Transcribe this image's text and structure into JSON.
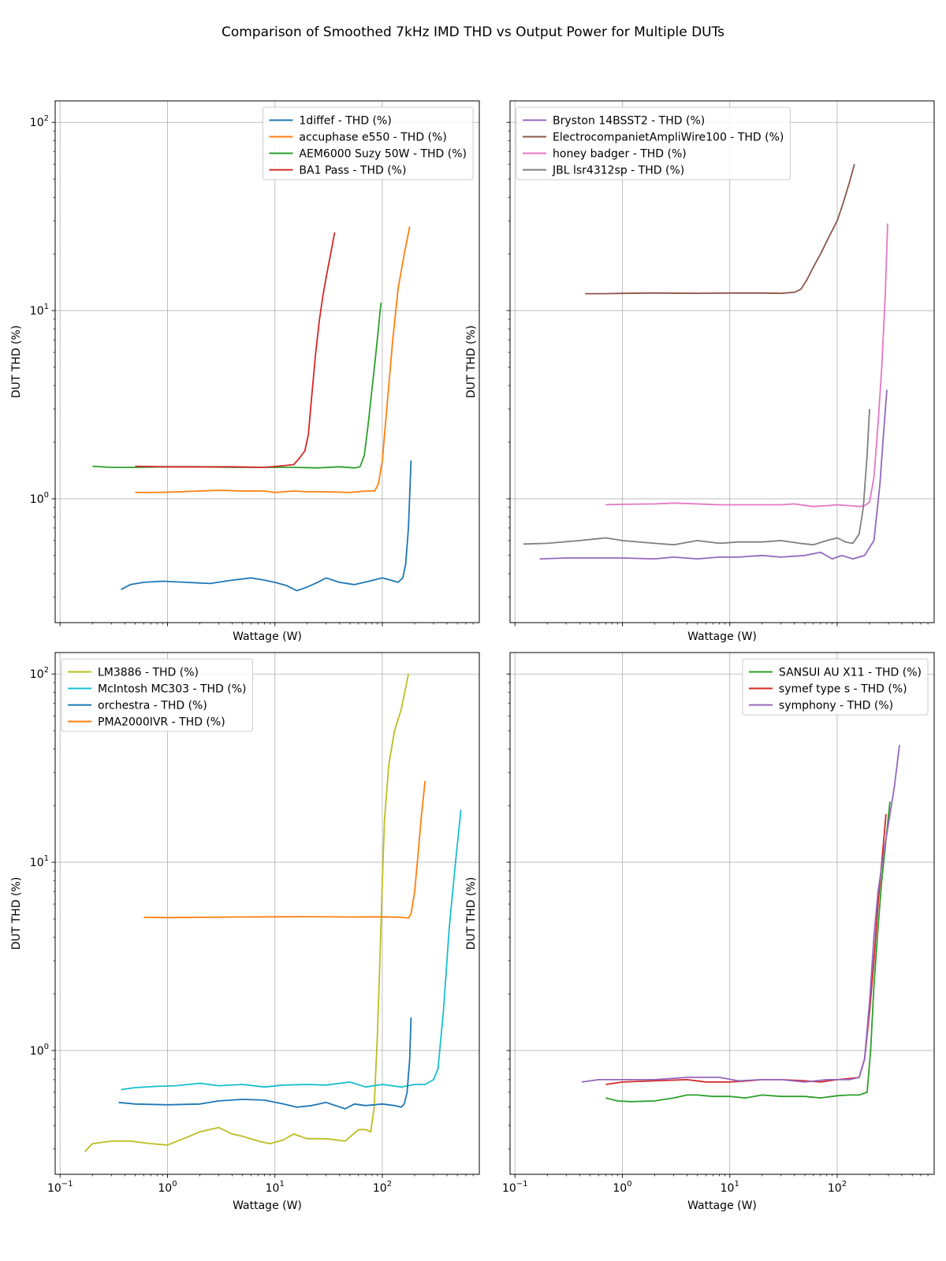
{
  "title": "Comparison of Smoothed 7kHz IMD THD vs Output Power for Multiple DUTs",
  "chart_data": [
    {
      "type": "line",
      "xscale": "log",
      "yscale": "log",
      "xlabel": "Wattage (W)",
      "ylabel": "DUT THD (%)",
      "xlim": [
        0.09,
        800
      ],
      "ylim": [
        0.22,
        130
      ],
      "xticks": [
        {
          "v": 0.1,
          "b": "10",
          "e": "−1"
        },
        {
          "v": 1,
          "b": "10",
          "e": "0"
        },
        {
          "v": 10,
          "b": "10",
          "e": "1"
        },
        {
          "v": 100,
          "b": "10",
          "e": "2"
        }
      ],
      "yticks": [
        {
          "v": 1,
          "b": "10",
          "e": "0"
        },
        {
          "v": 10,
          "b": "10",
          "e": "1"
        },
        {
          "v": 100,
          "b": "10",
          "e": "2"
        }
      ],
      "show_xtick_labels": false,
      "show_ytick_labels": true,
      "grid": true,
      "legend": "upper-right",
      "series": [
        {
          "name": "1diffef - THD (%)",
          "color": "#1f77b4",
          "x": [
            0.37,
            0.45,
            0.6,
            0.9,
            1.5,
            2.5,
            4,
            6,
            8,
            10,
            13,
            16,
            20,
            25,
            30,
            40,
            55,
            75,
            100,
            120,
            140,
            155,
            165,
            175,
            185
          ],
          "y": [
            0.33,
            0.35,
            0.36,
            0.365,
            0.36,
            0.355,
            0.37,
            0.38,
            0.37,
            0.36,
            0.345,
            0.325,
            0.34,
            0.36,
            0.38,
            0.36,
            0.35,
            0.365,
            0.38,
            0.37,
            0.36,
            0.38,
            0.45,
            0.7,
            1.6
          ]
        },
        {
          "name": "accuphase e550 - THD (%)",
          "color": "#ff7f0e",
          "x": [
            0.5,
            0.7,
            1,
            2,
            3,
            5,
            8,
            10,
            15,
            20,
            30,
            50,
            70,
            85,
            92,
            100,
            110,
            125,
            140,
            160,
            180
          ],
          "y": [
            1.08,
            1.08,
            1.085,
            1.1,
            1.11,
            1.1,
            1.1,
            1.08,
            1.1,
            1.09,
            1.09,
            1.08,
            1.1,
            1.1,
            1.2,
            1.6,
            3,
            7,
            13,
            20,
            28
          ]
        },
        {
          "name": "AEM6000 Suzy 50W - THD (%)",
          "color": "#2ca02c",
          "x": [
            0.2,
            0.3,
            0.5,
            1,
            2,
            4,
            8,
            15,
            25,
            40,
            55,
            62,
            68,
            74,
            80,
            86,
            92,
            97
          ],
          "y": [
            1.49,
            1.47,
            1.47,
            1.48,
            1.48,
            1.47,
            1.47,
            1.47,
            1.46,
            1.48,
            1.46,
            1.48,
            1.7,
            2.5,
            3.8,
            5.5,
            8,
            11
          ]
        },
        {
          "name": "BA1 Pass - THD (%)",
          "color": "#d62728",
          "x": [
            0.5,
            1,
            2,
            4,
            8,
            12,
            15,
            17,
            19,
            20.5,
            22,
            24,
            26,
            28,
            30,
            33,
            36
          ],
          "y": [
            1.49,
            1.48,
            1.48,
            1.48,
            1.47,
            1.5,
            1.52,
            1.65,
            1.8,
            2.2,
            3.5,
            6,
            9,
            12,
            15,
            20,
            26
          ]
        }
      ]
    },
    {
      "type": "line",
      "xscale": "log",
      "yscale": "log",
      "xlabel": "Wattage (W)",
      "ylabel": "DUT THD (%)",
      "xlim": [
        0.09,
        800
      ],
      "ylim": [
        0.22,
        130
      ],
      "xticks": [
        {
          "v": 0.1,
          "b": "10",
          "e": "−1"
        },
        {
          "v": 1,
          "b": "10",
          "e": "0"
        },
        {
          "v": 10,
          "b": "10",
          "e": "1"
        },
        {
          "v": 100,
          "b": "10",
          "e": "2"
        }
      ],
      "yticks": [
        {
          "v": 1,
          "b": "10",
          "e": "0"
        },
        {
          "v": 10,
          "b": "10",
          "e": "1"
        },
        {
          "v": 100,
          "b": "10",
          "e": "2"
        }
      ],
      "show_xtick_labels": false,
      "show_ytick_labels": false,
      "grid": true,
      "legend": "upper-left",
      "series": [
        {
          "name": "Bryston 14BSST2 - THD (%)",
          "color": "#9467bd",
          "x": [
            0.17,
            0.3,
            0.6,
            1,
            2,
            3,
            5,
            8,
            12,
            20,
            30,
            50,
            70,
            90,
            110,
            140,
            180,
            220,
            250,
            270,
            290
          ],
          "y": [
            0.48,
            0.485,
            0.485,
            0.485,
            0.48,
            0.49,
            0.48,
            0.49,
            0.49,
            0.5,
            0.49,
            0.5,
            0.52,
            0.48,
            0.5,
            0.48,
            0.5,
            0.6,
            1.2,
            2.2,
            3.8
          ]
        },
        {
          "name": "ElectrocompanietAmpliWire100 - THD (%)",
          "color": "#8c564b",
          "x": [
            0.45,
            0.7,
            1,
            2,
            5,
            10,
            20,
            30,
            40,
            46,
            52,
            60,
            70,
            85,
            100,
            115,
            130,
            145
          ],
          "y": [
            12.3,
            12.3,
            12.35,
            12.4,
            12.35,
            12.4,
            12.4,
            12.35,
            12.5,
            13,
            14.5,
            17,
            20,
            25,
            30,
            38,
            48,
            60
          ]
        },
        {
          "name": "honey badger - THD (%)",
          "color": "#e377c2",
          "x": [
            0.7,
            1,
            2,
            3,
            5,
            8,
            12,
            20,
            30,
            40,
            60,
            80,
            100,
            130,
            160,
            180,
            200,
            220,
            240,
            260,
            280,
            295
          ],
          "y": [
            0.93,
            0.935,
            0.94,
            0.95,
            0.94,
            0.93,
            0.93,
            0.93,
            0.93,
            0.94,
            0.91,
            0.92,
            0.93,
            0.92,
            0.91,
            0.92,
            0.96,
            1.3,
            2.5,
            5,
            12,
            29
          ]
        },
        {
          "name": "JBL lsr4312sp - THD (%)",
          "color": "#7f7f7f",
          "x": [
            0.12,
            0.2,
            0.4,
            0.7,
            1,
            2,
            3,
            5,
            8,
            12,
            20,
            30,
            45,
            60,
            80,
            100,
            120,
            140,
            160,
            175,
            190,
            200
          ],
          "y": [
            0.575,
            0.58,
            0.6,
            0.62,
            0.6,
            0.58,
            0.57,
            0.6,
            0.58,
            0.59,
            0.59,
            0.6,
            0.58,
            0.57,
            0.6,
            0.62,
            0.59,
            0.58,
            0.65,
            0.9,
            1.7,
            3
          ]
        }
      ]
    },
    {
      "type": "line",
      "xscale": "log",
      "yscale": "log",
      "xlabel": "Wattage (W)",
      "ylabel": "DUT THD (%)",
      "xlim": [
        0.09,
        800
      ],
      "ylim": [
        0.22,
        130
      ],
      "xticks": [
        {
          "v": 0.1,
          "b": "10",
          "e": "−1"
        },
        {
          "v": 1,
          "b": "10",
          "e": "0"
        },
        {
          "v": 10,
          "b": "10",
          "e": "1"
        },
        {
          "v": 100,
          "b": "10",
          "e": "2"
        }
      ],
      "yticks": [
        {
          "v": 1,
          "b": "10",
          "e": "0"
        },
        {
          "v": 10,
          "b": "10",
          "e": "1"
        },
        {
          "v": 100,
          "b": "10",
          "e": "2"
        }
      ],
      "show_xtick_labels": true,
      "show_ytick_labels": true,
      "grid": true,
      "legend": "upper-left",
      "series": [
        {
          "name": "LM3886 - THD (%)",
          "color": "#bcbd22",
          "x": [
            0.17,
            0.2,
            0.3,
            0.45,
            0.7,
            1,
            1.5,
            2,
            3,
            4,
            5,
            7,
            9,
            12,
            15,
            20,
            30,
            45,
            60,
            70,
            78,
            84,
            90,
            95,
            100,
            105,
            115,
            130,
            150,
            175
          ],
          "y": [
            0.29,
            0.32,
            0.33,
            0.33,
            0.32,
            0.315,
            0.345,
            0.37,
            0.39,
            0.36,
            0.35,
            0.33,
            0.32,
            0.335,
            0.36,
            0.34,
            0.34,
            0.33,
            0.38,
            0.38,
            0.37,
            0.5,
            1.2,
            3,
            8,
            17,
            33,
            50,
            65,
            100
          ]
        },
        {
          "name": "McIntosh MC303 - THD (%)",
          "color": "#17becf",
          "x": [
            0.37,
            0.5,
            0.8,
            1.2,
            2,
            3,
            5,
            8,
            12,
            20,
            30,
            50,
            70,
            100,
            150,
            200,
            250,
            300,
            330,
            370,
            420,
            480,
            540
          ],
          "y": [
            0.62,
            0.635,
            0.645,
            0.65,
            0.67,
            0.65,
            0.66,
            0.64,
            0.655,
            0.66,
            0.655,
            0.68,
            0.64,
            0.66,
            0.64,
            0.66,
            0.66,
            0.7,
            0.8,
            1.6,
            4.5,
            10,
            19
          ]
        },
        {
          "name": "orchestra - THD (%)",
          "color": "#1f77b4",
          "x": [
            0.35,
            0.5,
            1,
            2,
            3,
            5,
            8,
            12,
            16,
            22,
            30,
            45,
            55,
            70,
            100,
            130,
            150,
            160,
            170,
            180,
            185
          ],
          "y": [
            0.53,
            0.52,
            0.515,
            0.52,
            0.54,
            0.55,
            0.545,
            0.52,
            0.5,
            0.51,
            0.53,
            0.49,
            0.52,
            0.51,
            0.52,
            0.51,
            0.5,
            0.52,
            0.6,
            0.9,
            1.5
          ]
        },
        {
          "name": "PMA2000IVR - THD (%)",
          "color": "#ff7f0e",
          "x": [
            0.6,
            1,
            2,
            5,
            10,
            20,
            50,
            100,
            150,
            175,
            185,
            200,
            215,
            230,
            250
          ],
          "y": [
            5.1,
            5.08,
            5.1,
            5.12,
            5.13,
            5.14,
            5.12,
            5.13,
            5.1,
            5.05,
            5.3,
            7,
            11,
            17,
            27
          ]
        }
      ]
    },
    {
      "type": "line",
      "xscale": "log",
      "yscale": "log",
      "xlabel": "Wattage (W)",
      "ylabel": "DUT THD (%)",
      "xlim": [
        0.09,
        800
      ],
      "ylim": [
        0.22,
        130
      ],
      "xticks": [
        {
          "v": 0.1,
          "b": "10",
          "e": "−1"
        },
        {
          "v": 1,
          "b": "10",
          "e": "0"
        },
        {
          "v": 10,
          "b": "10",
          "e": "1"
        },
        {
          "v": 100,
          "b": "10",
          "e": "2"
        }
      ],
      "yticks": [
        {
          "v": 1,
          "b": "10",
          "e": "0"
        },
        {
          "v": 10,
          "b": "10",
          "e": "1"
        },
        {
          "v": 100,
          "b": "10",
          "e": "2"
        }
      ],
      "show_xtick_labels": true,
      "show_ytick_labels": false,
      "grid": true,
      "legend": "upper-right",
      "series": [
        {
          "name": "SANSUI AU X11 - THD (%)",
          "color": "#2ca02c",
          "x": [
            0.7,
            0.9,
            1.2,
            2,
            3,
            4,
            5,
            7,
            10,
            14,
            20,
            30,
            50,
            70,
            100,
            130,
            160,
            190,
            205,
            220,
            240,
            260,
            280,
            310
          ],
          "y": [
            0.56,
            0.54,
            0.535,
            0.54,
            0.56,
            0.58,
            0.58,
            0.57,
            0.57,
            0.56,
            0.58,
            0.57,
            0.57,
            0.56,
            0.575,
            0.58,
            0.58,
            0.6,
            1,
            2.2,
            4.5,
            8,
            12,
            21
          ]
        },
        {
          "name": "symef type s - THD (%)",
          "color": "#d62728",
          "x": [
            0.7,
            1,
            2,
            4,
            6,
            10,
            15,
            20,
            30,
            50,
            70,
            100,
            130,
            160,
            180,
            200,
            220,
            240,
            260,
            285
          ],
          "y": [
            0.66,
            0.68,
            0.69,
            0.7,
            0.68,
            0.68,
            0.69,
            0.7,
            0.7,
            0.69,
            0.68,
            0.7,
            0.71,
            0.72,
            0.9,
            1.6,
            3,
            6,
            10,
            18
          ]
        },
        {
          "name": "symphony - THD (%)",
          "color": "#9467bd",
          "x": [
            0.42,
            0.6,
            1,
            2,
            4,
            8,
            12,
            20,
            30,
            50,
            80,
            100,
            130,
            160,
            180,
            200,
            220,
            240,
            270,
            300,
            340,
            380
          ],
          "y": [
            0.68,
            0.7,
            0.7,
            0.7,
            0.72,
            0.72,
            0.69,
            0.7,
            0.7,
            0.68,
            0.7,
            0.7,
            0.7,
            0.72,
            0.9,
            1.8,
            4,
            7,
            11,
            16,
            25,
            42
          ]
        }
      ]
    }
  ]
}
